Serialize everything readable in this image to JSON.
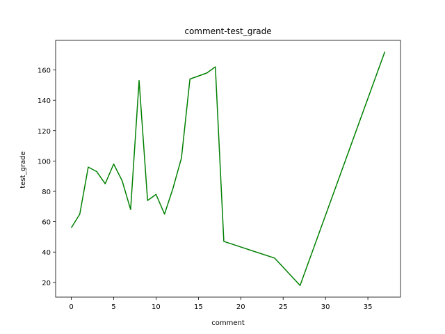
{
  "chart_data": {
    "type": "line",
    "title": "comment-test_grade",
    "xlabel": "comment",
    "ylabel": "test_grade",
    "xlim": [
      -1.85,
      38.85
    ],
    "ylim": [
      10.3,
      179.5
    ],
    "xticks": [
      0,
      5,
      10,
      15,
      20,
      25,
      30,
      35
    ],
    "yticks": [
      20,
      40,
      60,
      80,
      100,
      120,
      140,
      160
    ],
    "grid": false,
    "line_color": "#008000",
    "series": [
      {
        "x": [
          0,
          1,
          2,
          3,
          4,
          5,
          6,
          7,
          8,
          9,
          10,
          11,
          12,
          13,
          14,
          16,
          17,
          18,
          24,
          27,
          37
        ],
        "values": [
          56,
          65,
          96,
          93,
          85,
          98,
          87,
          68,
          153,
          74,
          78,
          65,
          82,
          102,
          154,
          158,
          162,
          47,
          36,
          18,
          172
        ]
      }
    ]
  }
}
